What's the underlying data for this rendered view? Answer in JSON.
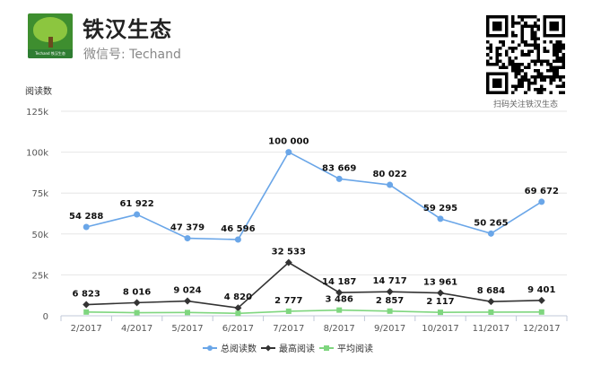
{
  "header": {
    "title": "铁汉生态",
    "subtitle": "微信号: Techand",
    "logo_text": "Techand 铁汉生态",
    "qr_caption": "扫码关注铁汉生态"
  },
  "chart_data": {
    "type": "line",
    "ylabel": "阅读数",
    "ylim": [
      0,
      125000
    ],
    "yticks": [
      "0",
      "25k",
      "50k",
      "75k",
      "100k",
      "125k"
    ],
    "ytick_values": [
      0,
      25000,
      50000,
      75000,
      100000,
      125000
    ],
    "categories": [
      "2/2017",
      "4/2017",
      "5/2017",
      "6/2017",
      "7/2017",
      "8/2017",
      "9/2017",
      "10/2017",
      "11/2017",
      "12/2017"
    ],
    "grid": true,
    "legend_position": "bottom",
    "series": [
      {
        "name": "总阅读数",
        "color": "#6aa6e8",
        "values": [
          54288,
          61922,
          47379,
          46596,
          100000,
          83669,
          80022,
          59295,
          50265,
          69672
        ],
        "labels": [
          "54 288",
          "61 922",
          "47 379",
          "46 596",
          "100 000",
          "83 669",
          "80 022",
          "59 295",
          "50 265",
          "69 672"
        ],
        "marker": "circle"
      },
      {
        "name": "最高阅读",
        "color": "#333333",
        "values": [
          6823,
          8016,
          9024,
          4820,
          32533,
          14187,
          14717,
          13961,
          8684,
          9401
        ],
        "labels": [
          "6 823",
          "8 016",
          "9 024",
          "4 820",
          "32 533",
          "14 187",
          "14 717",
          "13 961",
          "8 684",
          "9 401"
        ],
        "marker": "diamond"
      },
      {
        "name": "平均阅读",
        "color": "#7fd67f",
        "values": [
          2300,
          1900,
          2000,
          1500,
          2777,
          3486,
          2857,
          2117,
          2200,
          2300
        ],
        "labels": [
          "",
          "",
          "",
          "",
          "2 777",
          "3 486",
          "2 857",
          "2 117",
          "",
          ""
        ],
        "marker": "square"
      }
    ]
  }
}
